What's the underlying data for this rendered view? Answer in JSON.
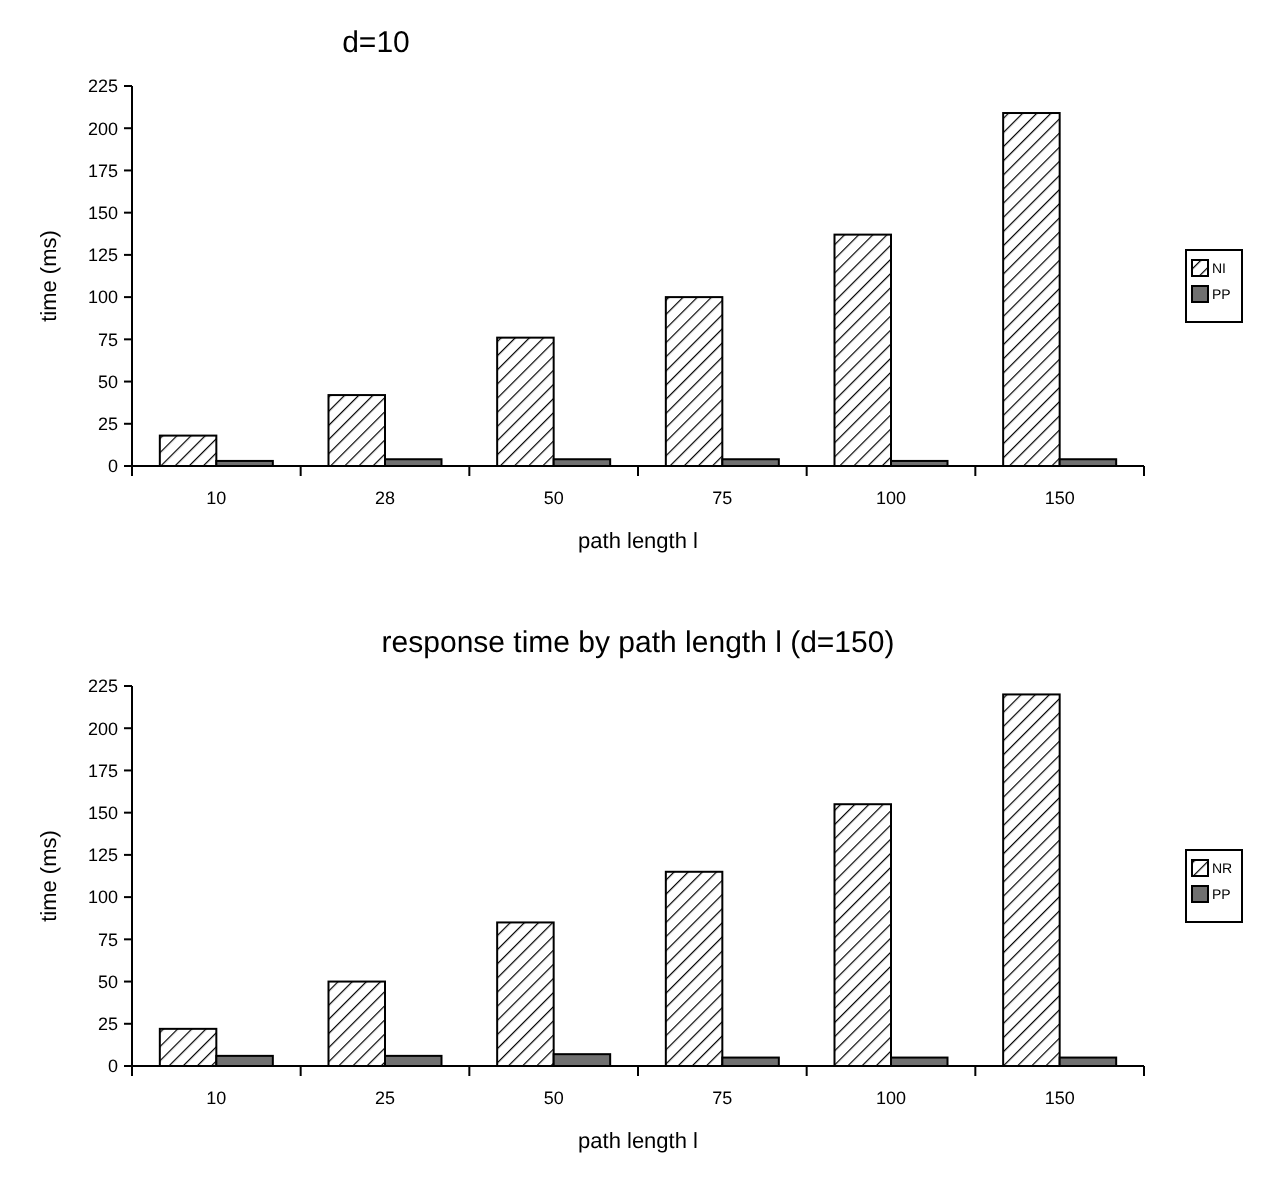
{
  "chart_data": [
    {
      "type": "bar",
      "title": "d=10",
      "xlabel": "path length l",
      "ylabel": "time (ms)",
      "categories": [
        "10",
        "28",
        "50",
        "75",
        "100",
        "150"
      ],
      "series": [
        {
          "name": "NI",
          "color": "#000000",
          "values": [
            18,
            42,
            76,
            100,
            137,
            209
          ]
        },
        {
          "name": "PP",
          "color": "#707070",
          "values": [
            3,
            4,
            4,
            4,
            3,
            4
          ]
        }
      ],
      "ylim": [
        0,
        225
      ],
      "yticks": [
        0,
        25,
        50,
        75,
        100,
        125,
        150,
        175,
        200,
        225
      ],
      "grid": false,
      "legend": "right"
    },
    {
      "type": "bar",
      "title": "response time by path length l (d=150)",
      "xlabel": "path length l",
      "ylabel": "time (ms)",
      "categories": [
        "10",
        "25",
        "50",
        "75",
        "100",
        "150"
      ],
      "series": [
        {
          "name": "NR",
          "color": "#000000",
          "values": [
            22,
            50,
            85,
            115,
            155,
            220
          ]
        },
        {
          "name": "PP",
          "color": "#707070",
          "values": [
            6,
            6,
            7,
            5,
            5,
            5
          ]
        }
      ],
      "ylim": [
        0,
        225
      ],
      "yticks": [
        0,
        25,
        50,
        75,
        100,
        125,
        150,
        175,
        200,
        225
      ],
      "grid": false,
      "legend": "right"
    }
  ]
}
